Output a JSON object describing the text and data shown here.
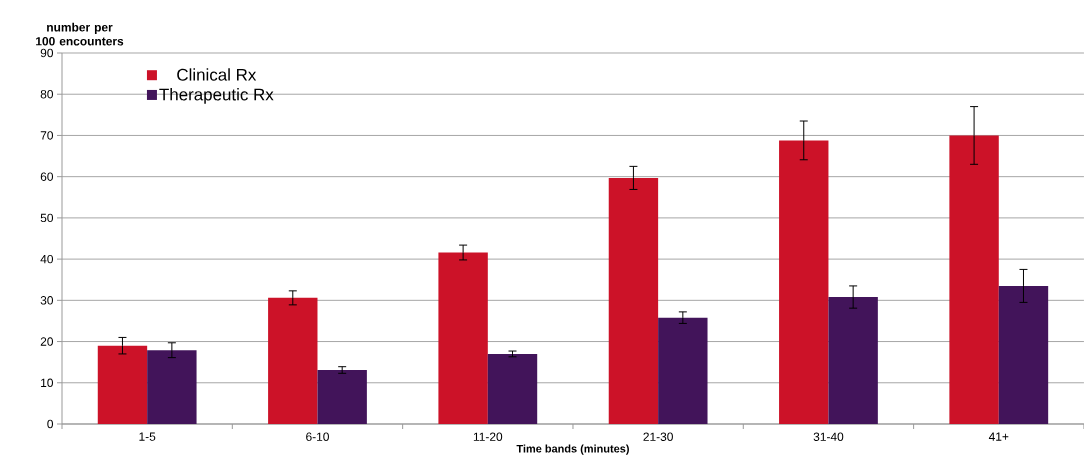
{
  "chart_data": {
    "type": "bar",
    "xlabel": "Time bands (minutes)",
    "ylabel": "number per 100 encounters",
    "categories": [
      "1-5",
      "6-10",
      "11-20",
      "21-30",
      "31-40",
      "41+"
    ],
    "series": [
      {
        "name": "Clinical Rx",
        "color": "#cc1228",
        "values": [
          19,
          30.6,
          41.6,
          59.7,
          68.8,
          70
        ],
        "errors": [
          2,
          1.7,
          1.8,
          2.8,
          4.7,
          7
        ]
      },
      {
        "name": "Therapeutic Rx",
        "color": "#42145a",
        "values": [
          17.9,
          13.1,
          17,
          25.8,
          30.8,
          33.5
        ],
        "errors": [
          1.8,
          0.8,
          0.7,
          1.4,
          2.7,
          4
        ]
      }
    ],
    "ylim": [
      0,
      90
    ],
    "yticks": [
      0,
      10,
      20,
      30,
      40,
      50,
      60,
      70,
      80,
      90
    ],
    "grid": "y",
    "legend": "top left"
  }
}
